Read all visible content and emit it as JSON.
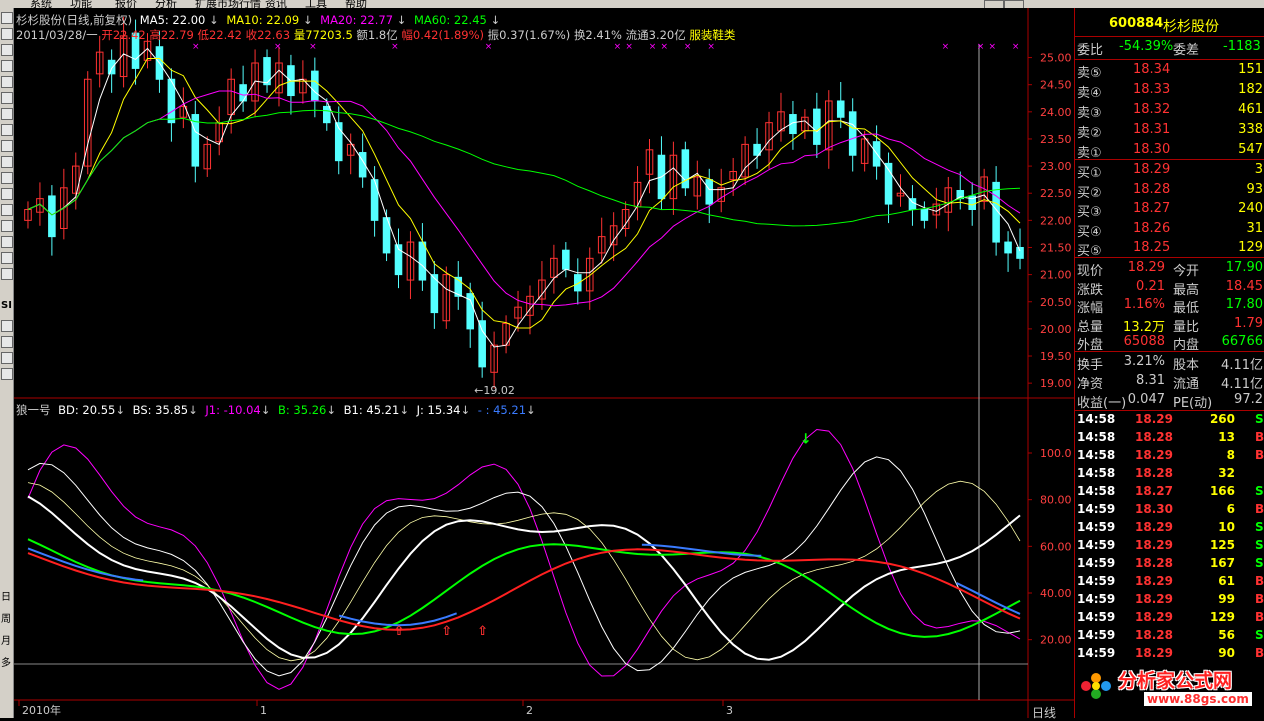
{
  "menu": [
    "系统",
    "功能",
    "报价",
    "分析",
    "扩展市场行情",
    "资讯",
    "工具",
    "帮助"
  ],
  "toolbar_labels": [
    "SI",
    "日",
    "周",
    "月",
    "多"
  ],
  "chart_header": {
    "title": "杉杉股份(日线,前复权)",
    "ma5": "MA5: 22.00",
    "ma10": "MA10: 22.09",
    "ma20": "MA20: 22.77",
    "ma60": "MA60: 22.45"
  },
  "bar_info": {
    "date": "2011/03/28/一",
    "open": "开22.42",
    "high": "高22.79",
    "low": "低22.42",
    "close": "收22.63",
    "vol": "量77203.5",
    "amount": "额1.8亿",
    "change": "幅0.42(1.89%)",
    "amp": "振0.37(1.67%)",
    "turnover": "换2.41%",
    "float": "流通3.20亿",
    "sector": "服装鞋类"
  },
  "price_axis": [
    "25.00",
    "24.50",
    "24.00",
    "23.50",
    "23.00",
    "22.50",
    "22.00",
    "21.50",
    "21.00",
    "20.50",
    "20.00",
    "19.50",
    "19.00"
  ],
  "low_marker": "19.02",
  "indicator_header": {
    "name": "狼一号",
    "bd": "BD: 20.55",
    "bs": "BS: 35.85",
    "j1": "J1: -10.04",
    "b": "B: 35.26",
    "b1": "B1: 45.21",
    "j": "J: 15.34",
    "extra": "- : 45.21"
  },
  "indicator_axis": [
    "100.0",
    "80.00",
    "60.00",
    "40.00",
    "20.00"
  ],
  "time_axis": [
    "2010年",
    "1",
    "2",
    "3"
  ],
  "period_label": "日线",
  "quote": {
    "code": "600884",
    "name": "杉杉股份",
    "weibi_label": "委比",
    "weibi_value": "-54.39%",
    "weicha_label": "委差",
    "weicha_value": "-1183",
    "asks": [
      {
        "label": "卖⑤",
        "price": "18.34",
        "vol": "151"
      },
      {
        "label": "卖④",
        "price": "18.33",
        "vol": "182"
      },
      {
        "label": "卖③",
        "price": "18.32",
        "vol": "461"
      },
      {
        "label": "卖②",
        "price": "18.31",
        "vol": "338"
      },
      {
        "label": "卖①",
        "price": "18.30",
        "vol": "547"
      }
    ],
    "bids": [
      {
        "label": "买①",
        "price": "18.29",
        "vol": "3"
      },
      {
        "label": "买②",
        "price": "18.28",
        "vol": "93"
      },
      {
        "label": "买③",
        "price": "18.27",
        "vol": "240"
      },
      {
        "label": "买④",
        "price": "18.26",
        "vol": "31"
      },
      {
        "label": "买⑤",
        "price": "18.25",
        "vol": "129"
      }
    ],
    "stats": [
      {
        "l1": "现价",
        "v1": "18.29",
        "l2": "今开",
        "v2": "17.90"
      },
      {
        "l1": "涨跌",
        "v1": "0.21",
        "l2": "最高",
        "v2": "18.45"
      },
      {
        "l1": "涨幅",
        "v1": "1.16%",
        "l2": "最低",
        "v2": "17.80"
      },
      {
        "l1": "总量",
        "v1": "13.2万",
        "l2": "量比",
        "v2": "1.79"
      },
      {
        "l1": "外盘",
        "v1": "65088",
        "l2": "内盘",
        "v2": "66766"
      }
    ],
    "stats2": [
      {
        "l1": "换手",
        "v1": "3.21%",
        "l2": "股本",
        "v2": "4.11亿"
      },
      {
        "l1": "净资",
        "v1": "8.31",
        "l2": "流通",
        "v2": "4.11亿"
      },
      {
        "l1": "收益(一)",
        "v1": "0.047",
        "l2": "PE(动)",
        "v2": "97.2"
      }
    ],
    "ticks": [
      {
        "t": "14:58",
        "p": "18.29",
        "v": "260",
        "s": "S"
      },
      {
        "t": "14:58",
        "p": "18.28",
        "v": "13",
        "s": "B"
      },
      {
        "t": "14:58",
        "p": "18.29",
        "v": "8",
        "s": "B"
      },
      {
        "t": "14:58",
        "p": "18.28",
        "v": "32",
        "s": ""
      },
      {
        "t": "14:58",
        "p": "18.27",
        "v": "166",
        "s": "S"
      },
      {
        "t": "14:59",
        "p": "18.30",
        "v": "6",
        "s": "B"
      },
      {
        "t": "14:59",
        "p": "18.29",
        "v": "10",
        "s": "S"
      },
      {
        "t": "14:59",
        "p": "18.29",
        "v": "125",
        "s": "S"
      },
      {
        "t": "14:59",
        "p": "18.28",
        "v": "167",
        "s": "S"
      },
      {
        "t": "14:59",
        "p": "18.29",
        "v": "61",
        "s": "B"
      },
      {
        "t": "14:59",
        "p": "18.29",
        "v": "99",
        "s": "B"
      },
      {
        "t": "14:59",
        "p": "18.29",
        "v": "129",
        "s": "B"
      },
      {
        "t": "14:59",
        "p": "18.28",
        "v": "56",
        "s": "S"
      },
      {
        "t": "14:59",
        "p": "18.29",
        "v": "90",
        "s": "B"
      }
    ]
  },
  "logo": {
    "text": "分析家公式网",
    "url": "www.88gs.com"
  },
  "colors": {
    "up": "#ff3232",
    "down": "#54ffff",
    "ma5": "#ffffff",
    "ma10": "#ffff00",
    "ma20": "#ff00ff",
    "ma60": "#00ff00"
  }
}
